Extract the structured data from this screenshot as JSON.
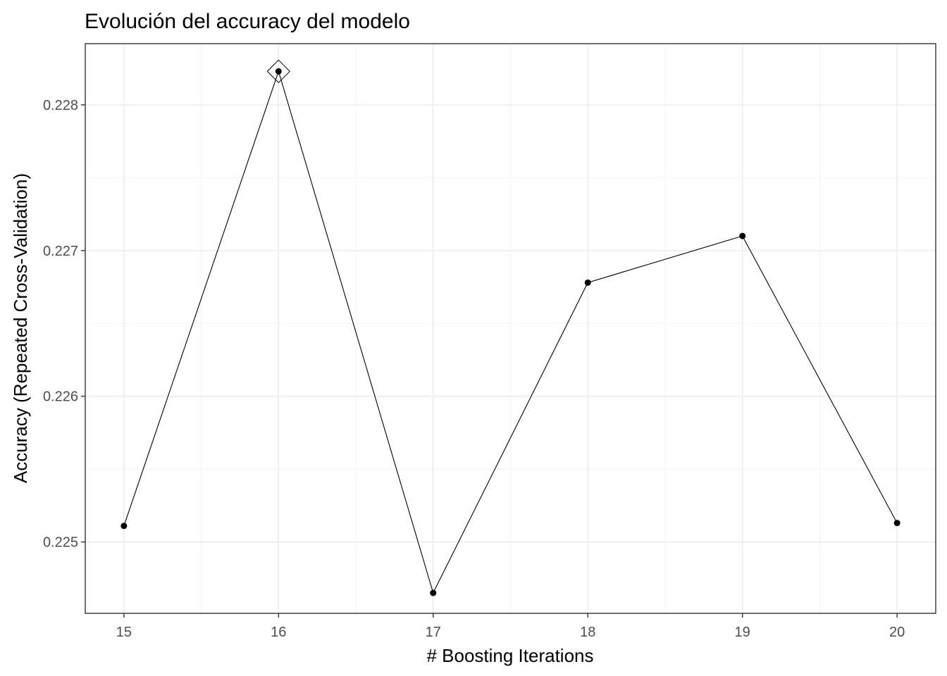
{
  "chart_data": {
    "type": "line",
    "title": "Evolución del accuracy del modelo",
    "xlabel": "# Boosting Iterations",
    "ylabel": "Accuracy (Repeated Cross-Validation)",
    "x": [
      15,
      16,
      17,
      18,
      19,
      20
    ],
    "series": [
      {
        "values": [
          0.22511,
          0.22823,
          0.22465,
          0.22678,
          0.2271,
          0.22513
        ]
      }
    ],
    "xlim": [
      14.75,
      20.25
    ],
    "ylim": [
      0.22451,
      0.22842
    ],
    "x_ticks": [
      15,
      16,
      17,
      18,
      19,
      20
    ],
    "y_ticks": [
      0.225,
      0.226,
      0.227,
      0.228
    ],
    "y_tick_labels": [
      "0.225",
      "0.226",
      "0.227",
      "0.228"
    ],
    "best_point": {
      "x": 16,
      "y": 0.22823
    },
    "grid": true,
    "legend": "none",
    "colors": {
      "line": "#000000",
      "points": "#000000",
      "grid": "#ebebeb",
      "border": "#333333"
    }
  }
}
